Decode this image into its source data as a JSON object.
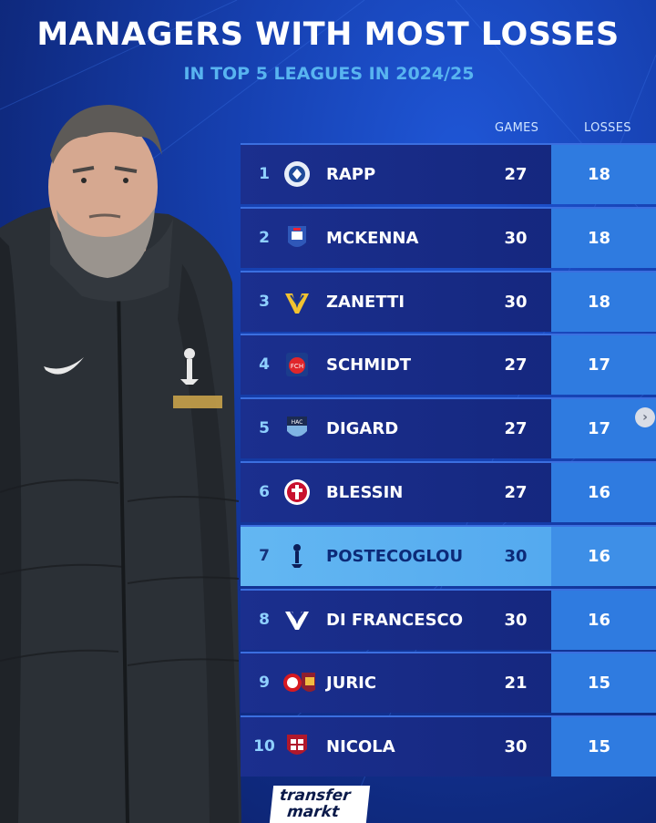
{
  "header": {
    "title": "MANAGERS WITH MOST LOSSES",
    "subtitle": "IN TOP 5 LEAGUES IN 2024/25"
  },
  "table": {
    "columns": {
      "games": "GAMES",
      "losses": "LOSSES"
    },
    "rows": [
      {
        "rank": "1",
        "name": "RAPP",
        "games": "27",
        "losses": "18",
        "crest": "holstein-kiel-crest"
      },
      {
        "rank": "2",
        "name": "MCKENNA",
        "games": "30",
        "losses": "18",
        "crest": "ipswich-crest"
      },
      {
        "rank": "3",
        "name": "ZANETTI",
        "games": "30",
        "losses": "18",
        "crest": "verona-crest"
      },
      {
        "rank": "4",
        "name": "SCHMIDT",
        "games": "27",
        "losses": "17",
        "crest": "heidenheim-crest"
      },
      {
        "rank": "5",
        "name": "DIGARD",
        "games": "27",
        "losses": "17",
        "crest": "le-havre-crest"
      },
      {
        "rank": "6",
        "name": "BLESSIN",
        "games": "27",
        "losses": "16",
        "crest": "st-pauli-crest"
      },
      {
        "rank": "7",
        "name": "POSTECOGLOU",
        "games": "30",
        "losses": "16",
        "crest": "tottenham-crest"
      },
      {
        "rank": "8",
        "name": "DI FRANCESCO",
        "games": "30",
        "losses": "16",
        "crest": "venezia-crest"
      },
      {
        "rank": "9",
        "name": "JURIC",
        "games": "21",
        "losses": "15",
        "crest": "southampton-roma-crest"
      },
      {
        "rank": "10",
        "name": "NICOLA",
        "games": "30",
        "losses": "15",
        "crest": "cagliari-crest"
      }
    ],
    "highlight_rank": "7"
  },
  "brand": {
    "line1": "transfer",
    "line2": "markt"
  },
  "colors": {
    "background": "#1640b0",
    "accent": "#58b4f0",
    "losses_cell": "#2f7be0",
    "highlight_row": "#63b7f2"
  }
}
